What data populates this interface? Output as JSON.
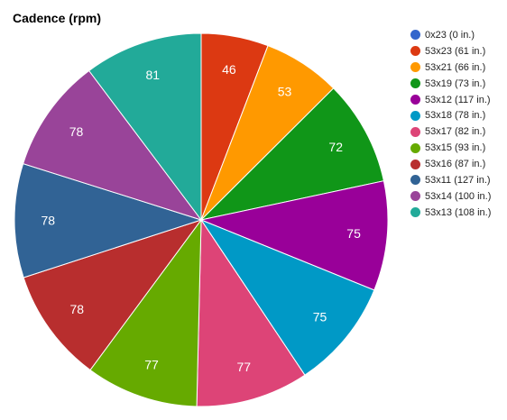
{
  "chart_data": {
    "type": "pie",
    "title": "Cadence (rpm)",
    "legend_position": "right",
    "slices": [
      {
        "label": "0x23 (0 in.)",
        "value": 0,
        "color": "#3366cc"
      },
      {
        "label": "53x23 (61 in.)",
        "value": 46,
        "color": "#dc3912"
      },
      {
        "label": "53x21 (66 in.)",
        "value": 53,
        "color": "#ff9900"
      },
      {
        "label": "53x19 (73 in.)",
        "value": 72,
        "color": "#109618"
      },
      {
        "label": "53x12 (117 in.)",
        "value": 75,
        "color": "#990099"
      },
      {
        "label": "53x18 (78 in.)",
        "value": 75,
        "color": "#0099c6"
      },
      {
        "label": "53x17 (82 in.)",
        "value": 77,
        "color": "#dd4477"
      },
      {
        "label": "53x15 (93 in.)",
        "value": 77,
        "color": "#66aa00"
      },
      {
        "label": "53x16 (87 in.)",
        "value": 78,
        "color": "#b82e2e"
      },
      {
        "label": "53x11 (127 in.)",
        "value": 78,
        "color": "#316395"
      },
      {
        "label": "53x14 (100 in.)",
        "value": 78,
        "color": "#994499"
      },
      {
        "label": "53x13 (108 in.)",
        "value": 81,
        "color": "#22aa99"
      }
    ]
  }
}
